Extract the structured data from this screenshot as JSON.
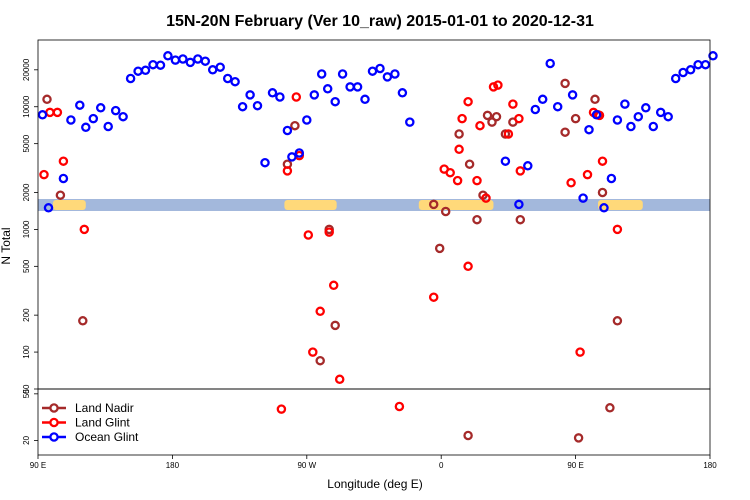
{
  "chart_data": {
    "type": "scatter",
    "title": "15N-20N February (Ver 10_raw)   2015-01-01 to 2020-12-31",
    "xlabel": "Longitude (deg E)",
    "ylabel": "N Total",
    "x_ticks": [
      {
        "value": 90,
        "label": "90 E"
      },
      {
        "value": 180,
        "label": "180"
      },
      {
        "value": 270,
        "label": "90 W"
      },
      {
        "value": 360,
        "label": "0"
      },
      {
        "value": 450,
        "label": "90 E"
      },
      {
        "value": 540,
        "label": "180"
      }
    ],
    "xlim": [
      90,
      540
    ],
    "upper_panel": {
      "scale": "log",
      "ylim": [
        50,
        35000
      ],
      "y_ticks": [
        "50",
        "100",
        "200",
        "500",
        "1000",
        "2000",
        "5000",
        "10000",
        "20000"
      ]
    },
    "lower_panel": {
      "scale": "log",
      "ylim": [
        15,
        55
      ],
      "y_ticks": [
        "20",
        "50"
      ]
    },
    "land_band": {
      "land_color": "#ffd97a",
      "ocean_color": "#a3b8dc",
      "land_ranges": [
        [
          100,
          122
        ],
        [
          255,
          290
        ],
        [
          345,
          395
        ],
        [
          465,
          495
        ]
      ]
    },
    "series": [
      {
        "name": "Land Nadir",
        "color": "#a52a2a",
        "points": [
          [
            96,
            11500
          ],
          [
            105,
            1900
          ],
          [
            120,
            180
          ],
          [
            257,
            3400
          ],
          [
            262,
            7000
          ],
          [
            279,
            85
          ],
          [
            285,
            1000
          ],
          [
            289,
            165
          ],
          [
            355,
            1600
          ],
          [
            359,
            700
          ],
          [
            363,
            1400
          ],
          [
            372,
            6000
          ],
          [
            378,
            22
          ],
          [
            379,
            3400
          ],
          [
            384,
            1200
          ],
          [
            388,
            1900
          ],
          [
            391,
            8500
          ],
          [
            394,
            7500
          ],
          [
            397,
            8300
          ],
          [
            403,
            6000
          ],
          [
            408,
            7500
          ],
          [
            413,
            1200
          ],
          [
            443,
            15500
          ],
          [
            443,
            6200
          ],
          [
            450,
            8000
          ],
          [
            452,
            21
          ],
          [
            463,
            11500
          ],
          [
            465,
            8600
          ],
          [
            468,
            2000
          ],
          [
            473,
            38
          ],
          [
            478,
            180
          ]
        ]
      },
      {
        "name": "Land Glint",
        "color": "#ff0000",
        "points": [
          [
            94,
            2800
          ],
          [
            98,
            9000
          ],
          [
            103,
            9000
          ],
          [
            107,
            3600
          ],
          [
            121,
            1000
          ],
          [
            253,
            37
          ],
          [
            257,
            3000
          ],
          [
            263,
            12000
          ],
          [
            265,
            4000
          ],
          [
            271,
            900
          ],
          [
            274,
            100
          ],
          [
            279,
            215
          ],
          [
            285,
            950
          ],
          [
            288,
            350
          ],
          [
            292,
            60
          ],
          [
            332,
            39
          ],
          [
            355,
            280
          ],
          [
            362,
            3100
          ],
          [
            366,
            2900
          ],
          [
            371,
            2500
          ],
          [
            372,
            4500
          ],
          [
            374,
            8000
          ],
          [
            378,
            500
          ],
          [
            378,
            11000
          ],
          [
            384,
            2500
          ],
          [
            386,
            7000
          ],
          [
            390,
            1800
          ],
          [
            395,
            14500
          ],
          [
            398,
            15000
          ],
          [
            405,
            6000
          ],
          [
            408,
            10500
          ],
          [
            412,
            8000
          ],
          [
            413,
            3000
          ],
          [
            447,
            2400
          ],
          [
            453,
            100
          ],
          [
            458,
            2800
          ],
          [
            462,
            9000
          ],
          [
            466,
            8500
          ],
          [
            468,
            3600
          ],
          [
            478,
            1000
          ]
        ]
      },
      {
        "name": "Ocean Glint",
        "color": "#0000ff",
        "points": [
          [
            93,
            8600
          ],
          [
            97,
            1500
          ],
          [
            107,
            2600
          ],
          [
            112,
            7800
          ],
          [
            118,
            10300
          ],
          [
            122,
            6800
          ],
          [
            127,
            8000
          ],
          [
            132,
            9800
          ],
          [
            137,
            6900
          ],
          [
            142,
            9300
          ],
          [
            147,
            8300
          ],
          [
            152,
            17000
          ],
          [
            157,
            19500
          ],
          [
            162,
            19800
          ],
          [
            167,
            22000
          ],
          [
            172,
            21800
          ],
          [
            177,
            26000
          ],
          [
            182,
            24000
          ],
          [
            187,
            24500
          ],
          [
            192,
            23000
          ],
          [
            197,
            24500
          ],
          [
            202,
            23500
          ],
          [
            207,
            20000
          ],
          [
            212,
            21000
          ],
          [
            217,
            17000
          ],
          [
            222,
            16000
          ],
          [
            227,
            10000
          ],
          [
            232,
            12500
          ],
          [
            237,
            10200
          ],
          [
            242,
            3500
          ],
          [
            247,
            13000
          ],
          [
            252,
            12000
          ],
          [
            257,
            6400
          ],
          [
            260,
            3900
          ],
          [
            265,
            4200
          ],
          [
            270,
            7800
          ],
          [
            275,
            12500
          ],
          [
            280,
            18500
          ],
          [
            284,
            14000
          ],
          [
            289,
            11000
          ],
          [
            294,
            18500
          ],
          [
            299,
            14500
          ],
          [
            304,
            14500
          ],
          [
            309,
            11500
          ],
          [
            314,
            19500
          ],
          [
            319,
            20500
          ],
          [
            324,
            17500
          ],
          [
            329,
            18500
          ],
          [
            334,
            13000
          ],
          [
            339,
            7500
          ],
          [
            403,
            3600
          ],
          [
            412,
            1600
          ],
          [
            418,
            3300
          ],
          [
            423,
            9500
          ],
          [
            428,
            11500
          ],
          [
            433,
            22500
          ],
          [
            438,
            10000
          ],
          [
            448,
            12500
          ],
          [
            455,
            1800
          ],
          [
            459,
            6500
          ],
          [
            464,
            8600
          ],
          [
            469,
            1500
          ],
          [
            474,
            2600
          ],
          [
            478,
            7800
          ],
          [
            483,
            10500
          ],
          [
            487,
            6900
          ],
          [
            492,
            8300
          ],
          [
            497,
            9800
          ],
          [
            502,
            6900
          ],
          [
            507,
            9000
          ],
          [
            512,
            8300
          ],
          [
            517,
            17000
          ],
          [
            522,
            19000
          ],
          [
            527,
            20000
          ],
          [
            532,
            22000
          ],
          [
            537,
            22000
          ],
          [
            542,
            26000
          ]
        ]
      }
    ]
  }
}
